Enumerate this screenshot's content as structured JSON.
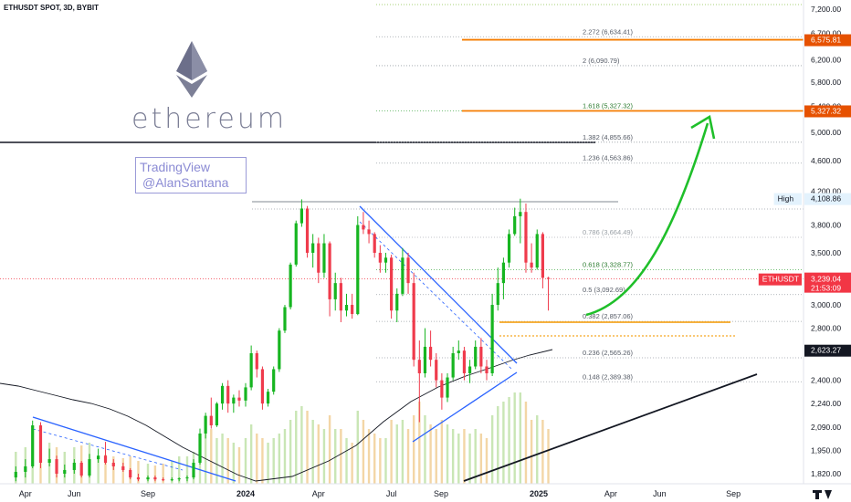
{
  "header": {
    "title": "ETHUSDT SPOT, 3D, BYBIT"
  },
  "branding": {
    "coin_word": "ethereum",
    "watermark_line1": "TradingView",
    "watermark_line2": "@AlanSantana",
    "logo_icon": "ethereum-diamond-icon"
  },
  "colors": {
    "candle_up": "#26a69a",
    "candle_up_bright": "#16b520",
    "candle_down": "#ef3b4c",
    "volume_up": "#c9e6b5",
    "volume_down": "#f3d6a6",
    "fib_line": "#9aa0a6",
    "fib_green": "#4caf50",
    "fib_orange_line": "#f57c00",
    "badge_orange": "#e65100",
    "badge_red": "#f23645",
    "trendline_blue": "#2962ff",
    "arrow_green": "#1fbf2a",
    "support_orange": "#f5a623",
    "ma_black": "#131722"
  },
  "chart_data": {
    "type": "candlestick",
    "symbol": "ETHUSDT",
    "timeframe": "3D",
    "exchange": "BYBIT",
    "y_scale": "log",
    "ylim": [
      1780,
      7400
    ],
    "y_ticks": [
      "7,200.00",
      "6,700.00",
      "6,200.00",
      "5,800.00",
      "5,400.00",
      "5,000.00",
      "4,600.00",
      "4,200.00",
      "3,800.00",
      "3,500.00",
      "3,200.00",
      "3,000.00",
      "2,800.00",
      "2,400.00",
      "2,240.00",
      "2,090.00",
      "1,950.00",
      "1,820.00"
    ],
    "y_tick_values": [
      7200,
      6700,
      6200,
      5800,
      5400,
      5000,
      4600,
      4200,
      3800,
      3500,
      3200,
      3000,
      2800,
      2400,
      2240,
      2090,
      1950,
      1820
    ],
    "x_ticks": [
      "Apr",
      "Jun",
      "Sep",
      "2024",
      "Apr",
      "Jul",
      "Sep",
      "2025",
      "Apr",
      "Jun",
      "Sep"
    ],
    "x_tick_dates": [
      "2023-04-01",
      "2023-06-01",
      "2023-09-01",
      "2024-01-01",
      "2024-04-01",
      "2024-07-01",
      "2024-09-01",
      "2025-01-01",
      "2025-04-01",
      "2025-06-01",
      "2025-09-01"
    ],
    "fib_levels": [
      {
        "label": "2.272 (6,634.41)",
        "ratio": 2.272,
        "price": 6634.41,
        "style": "gray"
      },
      {
        "label": "2 (6,090.79)",
        "ratio": 2,
        "price": 6090.79,
        "style": "gray"
      },
      {
        "label": "1.618 (5,327.32)",
        "ratio": 1.618,
        "price": 5327.32,
        "style": "green"
      },
      {
        "label": "1.382 (4,855.66)",
        "ratio": 1.382,
        "price": 4855.66,
        "style": "gray"
      },
      {
        "label": "1.236 (4,563.86)",
        "ratio": 1.236,
        "price": 4563.86,
        "style": "gray"
      },
      {
        "label": "0.786 (3,664.49)",
        "ratio": 0.786,
        "price": 3664.49,
        "style": "light"
      },
      {
        "label": "0.618 (3,328.77)",
        "ratio": 0.618,
        "price": 3328.77,
        "style": "green"
      },
      {
        "label": "0.5 (3,092.69)",
        "ratio": 0.5,
        "price": 3092.69,
        "style": "gray"
      },
      {
        "label": "0.382 (2,857.06)",
        "ratio": 0.382,
        "price": 2857.06,
        "style": "gray"
      },
      {
        "label": "0.236 (2,565.26)",
        "ratio": 0.236,
        "price": 2565.26,
        "style": "gray"
      },
      {
        "label": "0.148 (2,389.38)",
        "ratio": 0.148,
        "price": 2389.38,
        "style": "gray"
      }
    ],
    "price_badges": [
      {
        "label": "6,575.81",
        "price": 6575.81,
        "color": "#e65100"
      },
      {
        "label": "5,327.32",
        "price": 5327.32,
        "color": "#e65100"
      },
      {
        "label": "4,108.86",
        "price": 4108.86,
        "color": "#e3f2fd",
        "text_color": "#131722",
        "tag": "High"
      },
      {
        "label": "3,239.04",
        "price": 3239.04,
        "color": "#f23645",
        "tag": "ETHUSDT",
        "sub": "21:53:09"
      },
      {
        "label": "2,623.27",
        "price": 2623.27,
        "color": "#131722"
      }
    ],
    "high_label": "High",
    "last_symbol_tag": "ETHUSDT",
    "last_price": 3239.04,
    "countdown": "21:53:09",
    "ma_value": 2623.27,
    "high_value": 4108.86,
    "candles": [
      {
        "date": "2023-03-20",
        "o": 1800,
        "h": 1860,
        "l": 1780,
        "c": 1830
      },
      {
        "date": "2023-04-01",
        "o": 1830,
        "h": 1900,
        "l": 1800,
        "c": 1860
      },
      {
        "date": "2023-04-10",
        "o": 1860,
        "h": 2130,
        "l": 1850,
        "c": 2100
      },
      {
        "date": "2023-04-20",
        "o": 2100,
        "h": 2120,
        "l": 1850,
        "c": 1880
      },
      {
        "date": "2023-05-01",
        "o": 1880,
        "h": 1960,
        "l": 1860,
        "c": 1900
      },
      {
        "date": "2023-05-10",
        "o": 1900,
        "h": 1920,
        "l": 1800,
        "c": 1820
      },
      {
        "date": "2023-05-20",
        "o": 1820,
        "h": 1870,
        "l": 1800,
        "c": 1840
      },
      {
        "date": "2023-06-01",
        "o": 1840,
        "h": 1900,
        "l": 1820,
        "c": 1880
      },
      {
        "date": "2023-06-10",
        "o": 1880,
        "h": 1890,
        "l": 1800,
        "c": 1810
      },
      {
        "date": "2023-06-20",
        "o": 1810,
        "h": 1930,
        "l": 1800,
        "c": 1900
      },
      {
        "date": "2023-07-01",
        "o": 1900,
        "h": 1960,
        "l": 1880,
        "c": 1920
      },
      {
        "date": "2023-07-10",
        "o": 1920,
        "h": 2000,
        "l": 1870,
        "c": 1880
      },
      {
        "date": "2023-07-20",
        "o": 1880,
        "h": 1900,
        "l": 1840,
        "c": 1860
      },
      {
        "date": "2023-08-01",
        "o": 1860,
        "h": 1880,
        "l": 1830,
        "c": 1840
      },
      {
        "date": "2023-08-10",
        "o": 1840,
        "h": 1850,
        "l": 1790,
        "c": 1800
      },
      {
        "date": "2023-08-20",
        "o": 1800,
        "h": 1820,
        "l": 1780,
        "c": 1790
      },
      {
        "date": "2023-09-01",
        "o": 1790,
        "h": 1810,
        "l": 1780,
        "c": 1800
      },
      {
        "date": "2023-09-10",
        "o": 1800,
        "h": 1810,
        "l": 1780,
        "c": 1790
      },
      {
        "date": "2023-09-20",
        "o": 1790,
        "h": 1800,
        "l": 1780,
        "c": 1785
      },
      {
        "date": "2023-10-01",
        "o": 1785,
        "h": 1800,
        "l": 1780,
        "c": 1790
      },
      {
        "date": "2023-10-10",
        "o": 1790,
        "h": 1800,
        "l": 1780,
        "c": 1795
      },
      {
        "date": "2023-10-20",
        "o": 1795,
        "h": 1810,
        "l": 1780,
        "c": 1800
      },
      {
        "date": "2023-10-28",
        "o": 1800,
        "h": 1900,
        "l": 1790,
        "c": 1880
      },
      {
        "date": "2023-11-05",
        "o": 1880,
        "h": 2080,
        "l": 1870,
        "c": 2050
      },
      {
        "date": "2023-11-12",
        "o": 2050,
        "h": 2180,
        "l": 2020,
        "c": 2160
      },
      {
        "date": "2023-11-19",
        "o": 2160,
        "h": 2280,
        "l": 2080,
        "c": 2100
      },
      {
        "date": "2023-11-26",
        "o": 2100,
        "h": 2250,
        "l": 2090,
        "c": 2240
      },
      {
        "date": "2023-12-03",
        "o": 2240,
        "h": 2380,
        "l": 2200,
        "c": 2360
      },
      {
        "date": "2023-12-10",
        "o": 2360,
        "h": 2400,
        "l": 2180,
        "c": 2240
      },
      {
        "date": "2023-12-17",
        "o": 2240,
        "h": 2300,
        "l": 2180,
        "c": 2280
      },
      {
        "date": "2023-12-24",
        "o": 2280,
        "h": 2330,
        "l": 2220,
        "c": 2260
      },
      {
        "date": "2024-01-01",
        "o": 2260,
        "h": 2380,
        "l": 2220,
        "c": 2350
      },
      {
        "date": "2024-01-08",
        "o": 2350,
        "h": 2660,
        "l": 2330,
        "c": 2600
      },
      {
        "date": "2024-01-15",
        "o": 2600,
        "h": 2620,
        "l": 2420,
        "c": 2480
      },
      {
        "date": "2024-01-22",
        "o": 2480,
        "h": 2500,
        "l": 2200,
        "c": 2240
      },
      {
        "date": "2024-01-29",
        "o": 2240,
        "h": 2340,
        "l": 2220,
        "c": 2320
      },
      {
        "date": "2024-02-05",
        "o": 2320,
        "h": 2500,
        "l": 2300,
        "c": 2480
      },
      {
        "date": "2024-02-12",
        "o": 2480,
        "h": 2800,
        "l": 2460,
        "c": 2780
      },
      {
        "date": "2024-02-19",
        "o": 2780,
        "h": 3000,
        "l": 2760,
        "c": 2980
      },
      {
        "date": "2024-02-26",
        "o": 2980,
        "h": 3400,
        "l": 2960,
        "c": 3380
      },
      {
        "date": "2024-03-04",
        "o": 3380,
        "h": 3850,
        "l": 3360,
        "c": 3820
      },
      {
        "date": "2024-03-11",
        "o": 3820,
        "h": 4100,
        "l": 3780,
        "c": 3990
      },
      {
        "date": "2024-03-18",
        "o": 3990,
        "h": 4020,
        "l": 3450,
        "c": 3500
      },
      {
        "date": "2024-03-25",
        "o": 3500,
        "h": 3700,
        "l": 3350,
        "c": 3600
      },
      {
        "date": "2024-04-01",
        "o": 3600,
        "h": 3660,
        "l": 3200,
        "c": 3300
      },
      {
        "date": "2024-04-08",
        "o": 3300,
        "h": 3700,
        "l": 3250,
        "c": 3600
      },
      {
        "date": "2024-04-15",
        "o": 3600,
        "h": 3620,
        "l": 2900,
        "c": 3050
      },
      {
        "date": "2024-04-22",
        "o": 3050,
        "h": 3300,
        "l": 2950,
        "c": 3200
      },
      {
        "date": "2024-04-29",
        "o": 3200,
        "h": 3250,
        "l": 2850,
        "c": 2950
      },
      {
        "date": "2024-05-06",
        "o": 2950,
        "h": 3100,
        "l": 2900,
        "c": 3000
      },
      {
        "date": "2024-05-13",
        "o": 3000,
        "h": 3100,
        "l": 2880,
        "c": 2920
      },
      {
        "date": "2024-05-20",
        "o": 2920,
        "h": 3900,
        "l": 2910,
        "c": 3800
      },
      {
        "date": "2024-05-27",
        "o": 3800,
        "h": 3950,
        "l": 3700,
        "c": 3750
      },
      {
        "date": "2024-06-03",
        "o": 3750,
        "h": 3850,
        "l": 3600,
        "c": 3700
      },
      {
        "date": "2024-06-10",
        "o": 3700,
        "h": 3720,
        "l": 3450,
        "c": 3500
      },
      {
        "date": "2024-06-17",
        "o": 3500,
        "h": 3580,
        "l": 3300,
        "c": 3400
      },
      {
        "date": "2024-06-24",
        "o": 3400,
        "h": 3500,
        "l": 3300,
        "c": 3450
      },
      {
        "date": "2024-07-01",
        "o": 3450,
        "h": 3480,
        "l": 2880,
        "c": 2950
      },
      {
        "date": "2024-07-08",
        "o": 2950,
        "h": 3150,
        "l": 2850,
        "c": 3100
      },
      {
        "date": "2024-07-15",
        "o": 3100,
        "h": 3550,
        "l": 3080,
        "c": 3450
      },
      {
        "date": "2024-07-22",
        "o": 3450,
        "h": 3500,
        "l": 3100,
        "c": 3200
      },
      {
        "date": "2024-07-29",
        "o": 3200,
        "h": 3300,
        "l": 2500,
        "c": 2550
      },
      {
        "date": "2024-08-05",
        "o": 2550,
        "h": 2700,
        "l": 2120,
        "c": 2450
      },
      {
        "date": "2024-08-12",
        "o": 2450,
        "h": 2800,
        "l": 2420,
        "c": 2650
      },
      {
        "date": "2024-08-19",
        "o": 2650,
        "h": 2780,
        "l": 2500,
        "c": 2550
      },
      {
        "date": "2024-08-26",
        "o": 2550,
        "h": 2600,
        "l": 2350,
        "c": 2400
      },
      {
        "date": "2024-09-02",
        "o": 2400,
        "h": 2450,
        "l": 2200,
        "c": 2280
      },
      {
        "date": "2024-09-09",
        "o": 2280,
        "h": 2450,
        "l": 2250,
        "c": 2420
      },
      {
        "date": "2024-09-16",
        "o": 2420,
        "h": 2650,
        "l": 2400,
        "c": 2600
      },
      {
        "date": "2024-09-23",
        "o": 2600,
        "h": 2700,
        "l": 2550,
        "c": 2620
      },
      {
        "date": "2024-09-30",
        "o": 2620,
        "h": 2650,
        "l": 2400,
        "c": 2450
      },
      {
        "date": "2024-10-07",
        "o": 2450,
        "h": 2550,
        "l": 2380,
        "c": 2500
      },
      {
        "date": "2024-10-14",
        "o": 2500,
        "h": 2700,
        "l": 2480,
        "c": 2650
      },
      {
        "date": "2024-10-21",
        "o": 2650,
        "h": 2720,
        "l": 2450,
        "c": 2500
      },
      {
        "date": "2024-10-28",
        "o": 2500,
        "h": 2550,
        "l": 2400,
        "c": 2450
      },
      {
        "date": "2024-11-04",
        "o": 2450,
        "h": 3100,
        "l": 2430,
        "c": 3000
      },
      {
        "date": "2024-11-11",
        "o": 3000,
        "h": 3350,
        "l": 2950,
        "c": 3200
      },
      {
        "date": "2024-11-18",
        "o": 3200,
        "h": 3450,
        "l": 3050,
        "c": 3400
      },
      {
        "date": "2024-11-25",
        "o": 3400,
        "h": 3750,
        "l": 3350,
        "c": 3700
      },
      {
        "date": "2024-12-02",
        "o": 3700,
        "h": 4000,
        "l": 3680,
        "c": 3900
      },
      {
        "date": "2024-12-09",
        "o": 3900,
        "h": 4108,
        "l": 3600,
        "c": 3950
      },
      {
        "date": "2024-12-16",
        "o": 3950,
        "h": 4050,
        "l": 3300,
        "c": 3400
      },
      {
        "date": "2024-12-23",
        "o": 3400,
        "h": 3600,
        "l": 3300,
        "c": 3350
      },
      {
        "date": "2024-12-30",
        "o": 3350,
        "h": 3750,
        "l": 3330,
        "c": 3700
      },
      {
        "date": "2025-01-06",
        "o": 3700,
        "h": 3720,
        "l": 3150,
        "c": 3250
      },
      {
        "date": "2025-01-13",
        "o": 3250,
        "h": 3260,
        "l": 2950,
        "c": 3239
      }
    ],
    "volumes": [
      0.35,
      0.4,
      0.55,
      0.5,
      0.45,
      0.4,
      0.35,
      0.4,
      0.42,
      0.45,
      0.3,
      0.32,
      0.3,
      0.28,
      0.3,
      0.25,
      0.22,
      0.2,
      0.22,
      0.25,
      0.3,
      0.3,
      0.35,
      0.5,
      0.55,
      0.6,
      0.5,
      0.55,
      0.5,
      0.45,
      0.4,
      0.5,
      0.65,
      0.55,
      0.5,
      0.45,
      0.5,
      0.55,
      0.6,
      0.7,
      0.8,
      0.85,
      0.8,
      0.7,
      0.65,
      0.6,
      0.75,
      0.6,
      0.6,
      0.5,
      0.45,
      0.8,
      0.7,
      0.6,
      0.55,
      0.5,
      0.5,
      0.7,
      0.65,
      0.7,
      0.6,
      0.75,
      0.9,
      0.75,
      0.65,
      0.6,
      0.7,
      0.65,
      0.6,
      0.55,
      0.6,
      0.55,
      0.6,
      0.55,
      0.5,
      0.75,
      0.85,
      0.9,
      0.95,
      1.0,
      1.0,
      0.9,
      0.7,
      0.75,
      0.7,
      0.6
    ]
  }
}
